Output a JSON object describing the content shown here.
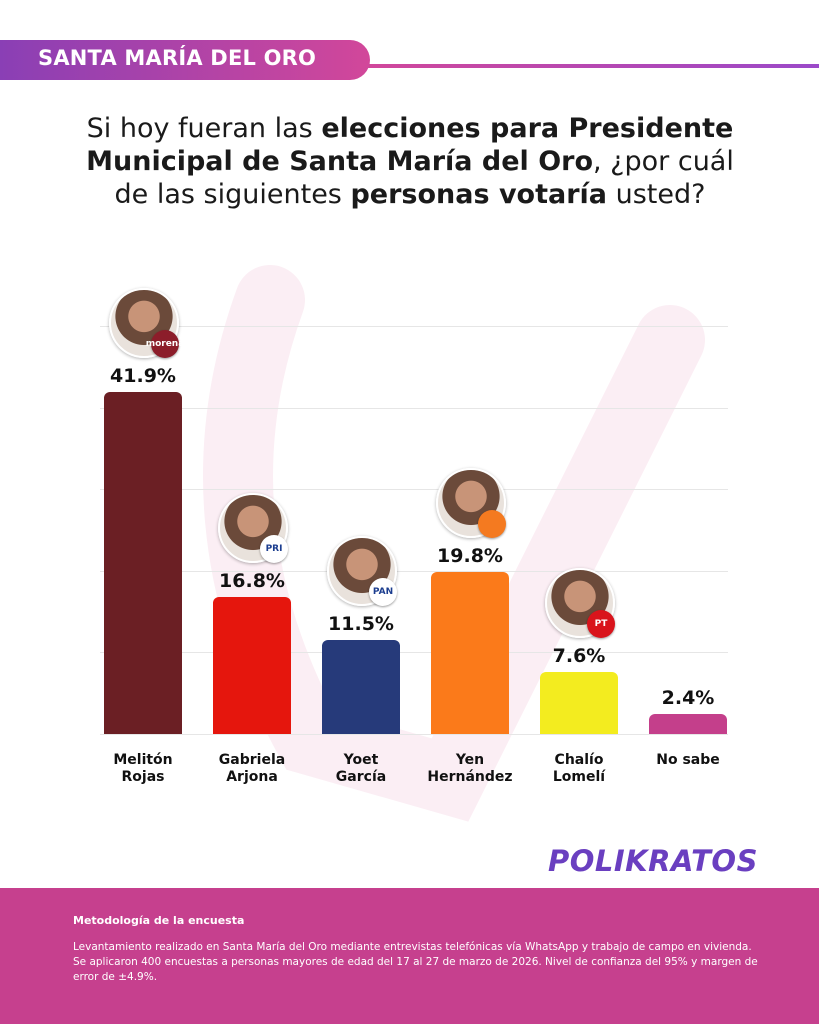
{
  "header": "SANTA MARÍA DEL ORO",
  "chart_data": {
    "type": "bar",
    "title_lines": [
      [
        {
          "text": "Si hoy fueran las ",
          "bold": false
        },
        {
          "text": "elecciones para Presidente",
          "bold": true
        }
      ],
      [
        {
          "text": "Municipal de Santa María del Oro",
          "bold": true
        },
        {
          "text": ", ¿por cuál",
          "bold": false
        }
      ],
      [
        {
          "text": "de las siguientes ",
          "bold": false
        },
        {
          "text": "personas votaría",
          "bold": true
        },
        {
          "text": " usted?",
          "bold": false
        }
      ]
    ],
    "categories": [
      "Melitón\nRojas",
      "Gabriela\nArjona",
      "Yoet\nGarcía",
      "Yen\nHernández",
      "Chalío\nLomelí",
      "No sabe"
    ],
    "values": [
      41.9,
      16.8,
      11.5,
      19.8,
      7.6,
      2.4
    ],
    "value_labels": [
      "41.9%",
      "16.8%",
      "11.5%",
      "19.8%",
      "7.6%",
      "2.4%"
    ],
    "colors": [
      "#6b1f24",
      "#e5160d",
      "#263a7a",
      "#fb7a1a",
      "#f3ec1f",
      "#c43f8b"
    ],
    "parties": [
      "morena",
      "PRI",
      "PAN",
      null,
      "PT",
      null
    ],
    "party_colors": [
      "#8c1d2a",
      "#ffffff",
      "#ffffff",
      "#f47a20",
      "#d9141c",
      null
    ],
    "ylim": [
      0,
      50
    ],
    "yticks": [
      0,
      10,
      20,
      30,
      40,
      50
    ],
    "grid": true
  },
  "logo": "POLIKRATOS",
  "methodology_title": "Metodología de la encuesta",
  "methodology_text": "Levantamiento realizado en Santa María del Oro mediante entrevistas telefónicas vía WhatsApp y trabajo de campo en vivienda. Se aplicaron 400 encuestas a personas mayores de edad del 17 al 27 de marzo de 2026. Nivel de confianza del 95% y margen de error de ±4.9%."
}
